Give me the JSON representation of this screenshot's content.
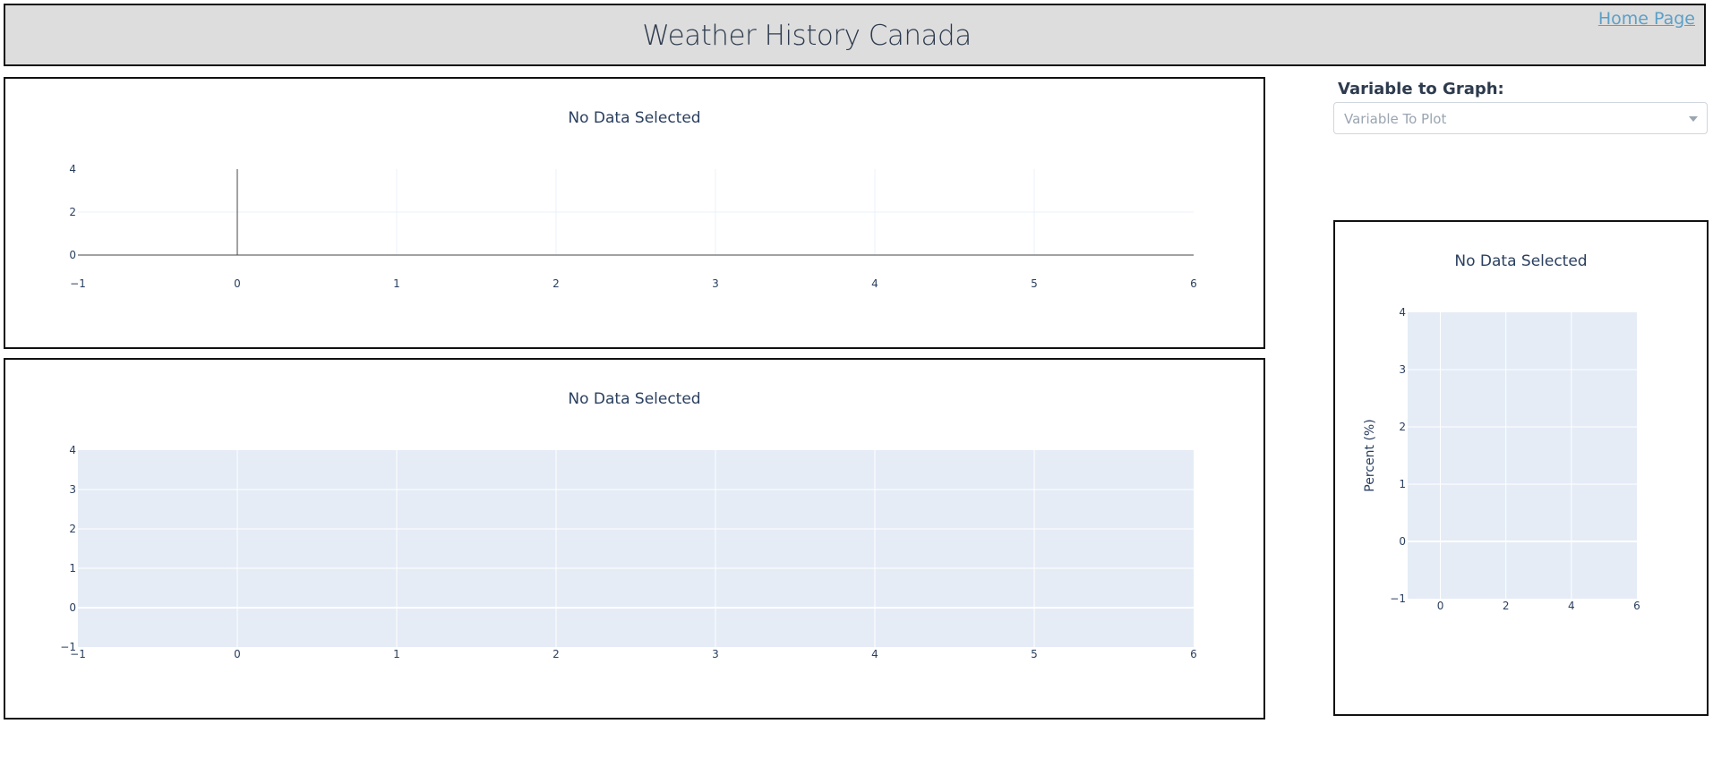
{
  "header": {
    "title": "Weather History Canada",
    "home_link": "Home Page"
  },
  "controls": {
    "variable_label": "Variable to Graph:",
    "variable_placeholder": "Variable To Plot"
  },
  "chart_data": [
    {
      "id": "chart-top",
      "type": "line",
      "title": "No Data Selected",
      "x": [],
      "y": [],
      "xlim": [
        -1,
        6
      ],
      "ylim": [
        0,
        4
      ],
      "xticks": [
        "−1",
        "0",
        "1",
        "2",
        "3",
        "4",
        "5",
        "6"
      ],
      "yticks": [
        "0",
        "2",
        "4"
      ],
      "xlabel": "",
      "ylabel": "",
      "background": "#ffffff",
      "grid": true
    },
    {
      "id": "chart-bottom",
      "type": "bar",
      "title": "No Data Selected",
      "x": [],
      "y": [],
      "xlim": [
        -1,
        6
      ],
      "ylim": [
        -1,
        4
      ],
      "xticks": [
        "−1",
        "0",
        "1",
        "2",
        "3",
        "4",
        "5",
        "6"
      ],
      "yticks": [
        "−1",
        "0",
        "1",
        "2",
        "3",
        "4"
      ],
      "xlabel": "",
      "ylabel": "",
      "background": "#e5ecf6",
      "grid": true
    },
    {
      "id": "chart-right",
      "type": "bar",
      "title": "No Data Selected",
      "x": [],
      "y": [],
      "xlim": [
        -1,
        6
      ],
      "ylim": [
        -1,
        4
      ],
      "xticks": [
        "0",
        "2",
        "4",
        "6"
      ],
      "yticks": [
        "−1",
        "0",
        "1",
        "2",
        "3",
        "4"
      ],
      "xlabel": "",
      "ylabel": "Percent (%)",
      "background": "#e5ecf6",
      "grid": true
    }
  ]
}
